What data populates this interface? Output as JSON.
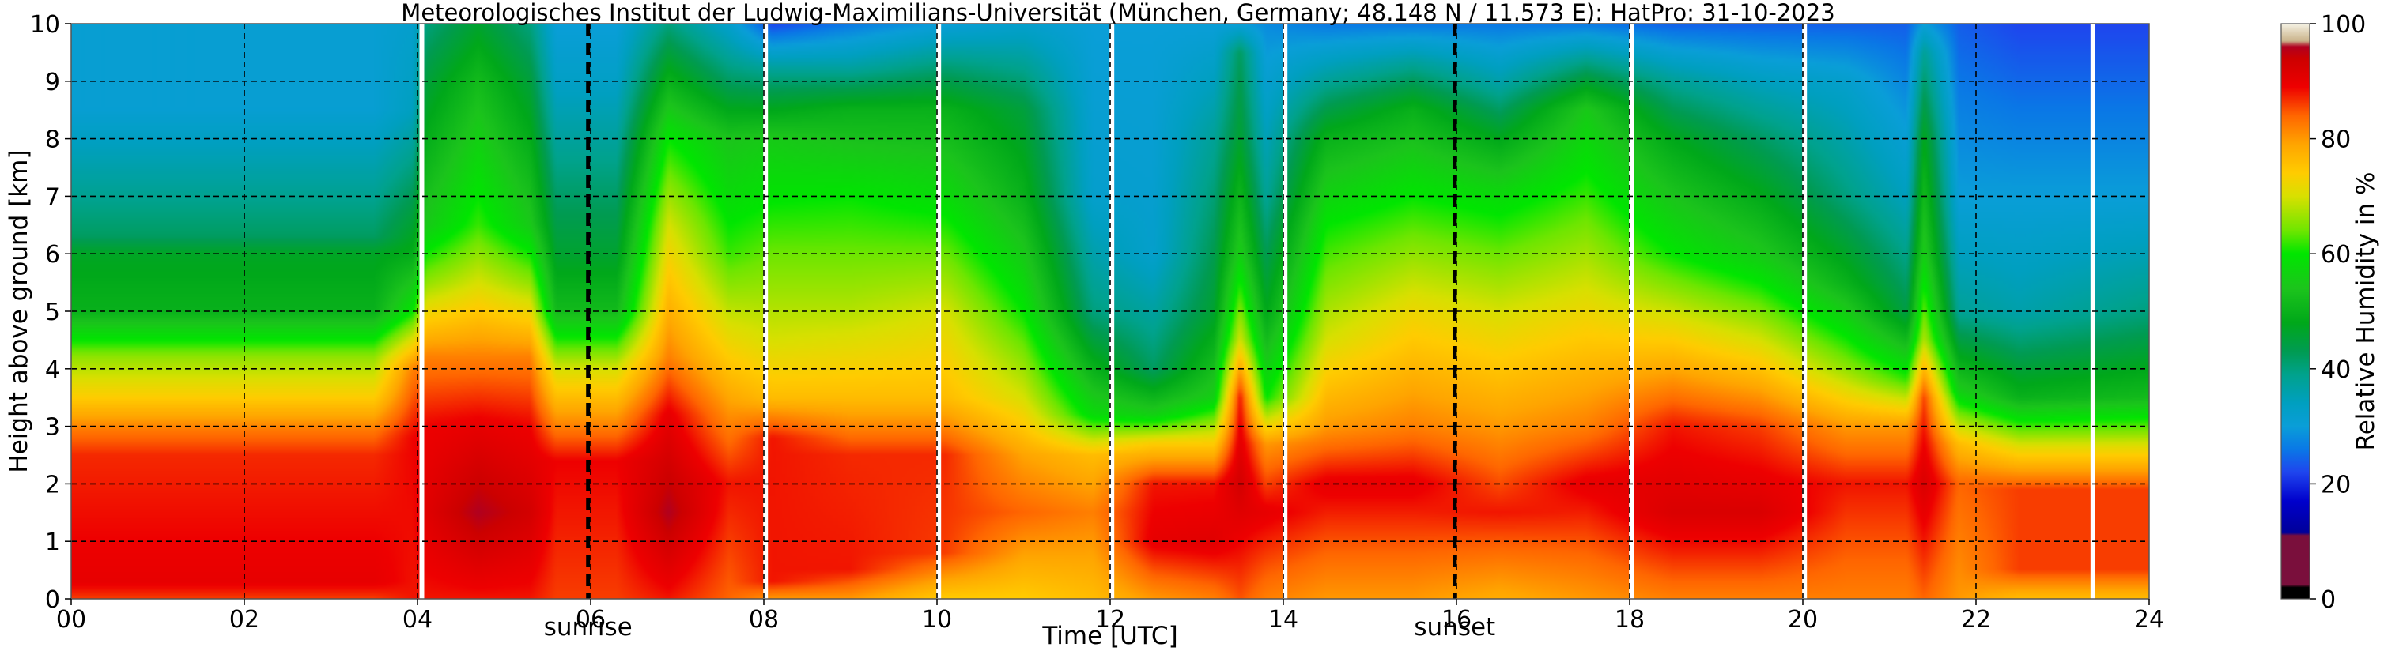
{
  "chart_data": {
    "type": "heatmap",
    "title": "Meteorologisches Institut der Ludwig-Maximilians-Universität (München, Germany; 48.148 N / 11.573 E):    HatPro: 31-10-2023",
    "xlabel": "Time [UTC]",
    "ylabel": "Height above ground [km]",
    "xlim": [
      0,
      24
    ],
    "ylim": [
      0,
      10
    ],
    "x_ticks": [
      0,
      2,
      4,
      6,
      8,
      10,
      12,
      14,
      16,
      18,
      20,
      22,
      24
    ],
    "x_tick_labels": [
      "00",
      "02",
      "04",
      "06",
      "08",
      "10",
      "12",
      "14",
      "16",
      "18",
      "20",
      "22",
      "24"
    ],
    "y_ticks": [
      0,
      1,
      2,
      3,
      4,
      5,
      6,
      7,
      8,
      9,
      10
    ],
    "y_tick_labels": [
      "0",
      "1",
      "2",
      "3",
      "4",
      "5",
      "6",
      "7",
      "8",
      "9",
      "10"
    ],
    "grid": true,
    "events": [
      {
        "time": 5.97,
        "label": "sunrise"
      },
      {
        "time": 15.98,
        "label": "sunset"
      }
    ],
    "data_gaps": [
      4.05,
      8.02,
      10.02,
      12.02,
      14.02,
      18.02,
      20.02,
      23.35
    ],
    "colorbar": {
      "label": "Relative Humidity in %",
      "range": [
        0,
        100
      ],
      "ticks": [
        0,
        20,
        40,
        60,
        80,
        100
      ],
      "tick_labels": [
        "0",
        "20",
        "40",
        "60",
        "80",
        "100"
      ],
      "colors": [
        {
          "v": 0,
          "c": "#000000"
        },
        {
          "v": 2,
          "c": "#000000"
        },
        {
          "v": 2.5,
          "c": "#7a0f3c"
        },
        {
          "v": 11,
          "c": "#7a0f3c"
        },
        {
          "v": 11.5,
          "c": "#000099"
        },
        {
          "v": 17,
          "c": "#0000cc"
        },
        {
          "v": 22,
          "c": "#1f45ee"
        },
        {
          "v": 26,
          "c": "#0a78e6"
        },
        {
          "v": 30,
          "c": "#0a9ed8"
        },
        {
          "v": 34,
          "c": "#009fc0"
        },
        {
          "v": 39,
          "c": "#00a28c"
        },
        {
          "v": 43,
          "c": "#009b52"
        },
        {
          "v": 48,
          "c": "#00a81a"
        },
        {
          "v": 54,
          "c": "#1cc41c"
        },
        {
          "v": 60,
          "c": "#00e600"
        },
        {
          "v": 64,
          "c": "#6ee600"
        },
        {
          "v": 70,
          "c": "#d8e000"
        },
        {
          "v": 74,
          "c": "#ffcc00"
        },
        {
          "v": 79,
          "c": "#ffa500"
        },
        {
          "v": 84,
          "c": "#ff6600"
        },
        {
          "v": 89,
          "c": "#ee0000"
        },
        {
          "v": 94,
          "c": "#cc0000"
        },
        {
          "v": 96,
          "c": "#b00020"
        },
        {
          "v": 97,
          "c": "#c9b28a"
        },
        {
          "v": 100,
          "c": "#f5f2e4"
        }
      ]
    },
    "profiles": [
      {
        "t": 0.0,
        "levels": [
          [
            0,
            86
          ],
          [
            0.3,
            90
          ],
          [
            2.5,
            87
          ],
          [
            2.9,
            83
          ],
          [
            3.5,
            74
          ],
          [
            4.2,
            66
          ],
          [
            5.0,
            50
          ],
          [
            6.0,
            47
          ],
          [
            6.3,
            42
          ],
          [
            8.5,
            31
          ],
          [
            10,
            31
          ]
        ]
      },
      {
        "t": 3.5,
        "levels": [
          [
            0,
            86
          ],
          [
            0.3,
            90
          ],
          [
            2.5,
            87
          ],
          [
            2.9,
            83
          ],
          [
            3.5,
            74
          ],
          [
            4.2,
            66
          ],
          [
            5.0,
            50
          ],
          [
            6.0,
            47
          ],
          [
            6.3,
            42
          ],
          [
            8.5,
            31
          ],
          [
            10,
            31
          ]
        ]
      },
      {
        "t": 3.95,
        "levels": [
          [
            0,
            88
          ],
          [
            2.8,
            89
          ],
          [
            4.0,
            82
          ],
          [
            5.0,
            60
          ],
          [
            6.0,
            49
          ],
          [
            8.5,
            34
          ],
          [
            10,
            32
          ]
        ]
      },
      {
        "t": 4.1,
        "levels": [
          [
            0,
            88
          ],
          [
            1.5,
            91
          ],
          [
            3.0,
            89
          ],
          [
            4.2,
            82
          ],
          [
            5.5,
            66
          ],
          [
            6.5,
            55
          ],
          [
            9.0,
            45
          ],
          [
            10,
            40
          ]
        ]
      },
      {
        "t": 4.7,
        "levels": [
          [
            0,
            88
          ],
          [
            1.5,
            96
          ],
          [
            3.0,
            90
          ],
          [
            4.2,
            82
          ],
          [
            5.5,
            70
          ],
          [
            6.5,
            62
          ],
          [
            9.0,
            52
          ],
          [
            10,
            46
          ]
        ]
      },
      {
        "t": 5.3,
        "levels": [
          [
            0,
            88
          ],
          [
            1.5,
            93
          ],
          [
            3.0,
            89
          ],
          [
            4.2,
            82
          ],
          [
            5.5,
            66
          ],
          [
            6.5,
            55
          ],
          [
            9.0,
            45
          ],
          [
            10,
            40
          ]
        ]
      },
      {
        "t": 5.6,
        "levels": [
          [
            0,
            86
          ],
          [
            2.4,
            89
          ],
          [
            3.0,
            82
          ],
          [
            4.0,
            70
          ],
          [
            5.0,
            52
          ],
          [
            6.0,
            46
          ],
          [
            9.0,
            33
          ],
          [
            10,
            30
          ]
        ]
      },
      {
        "t": 6.3,
        "levels": [
          [
            0,
            86
          ],
          [
            2.4,
            89
          ],
          [
            3.0,
            82
          ],
          [
            4.0,
            70
          ],
          [
            5.0,
            52
          ],
          [
            6.0,
            46
          ],
          [
            9.0,
            33
          ],
          [
            10,
            30
          ]
        ]
      },
      {
        "t": 6.9,
        "levels": [
          [
            0,
            88
          ],
          [
            1.5,
            96
          ],
          [
            3.2,
            90
          ],
          [
            4.2,
            82
          ],
          [
            6.5,
            70
          ],
          [
            8.0,
            60
          ],
          [
            9.0,
            50
          ],
          [
            10,
            40
          ]
        ]
      },
      {
        "t": 7.6,
        "levels": [
          [
            0,
            84
          ],
          [
            2.0,
            88
          ],
          [
            3.0,
            82
          ],
          [
            4.5,
            72
          ],
          [
            6.0,
            62
          ],
          [
            8.0,
            54
          ],
          [
            9.0,
            42
          ],
          [
            10,
            32
          ]
        ]
      },
      {
        "t": 8.1,
        "levels": [
          [
            0,
            80
          ],
          [
            0.3,
            88
          ],
          [
            2.8,
            88
          ],
          [
            3.5,
            76
          ],
          [
            4.5,
            70
          ],
          [
            6.0,
            64
          ],
          [
            8.0,
            55
          ],
          [
            9.2,
            38
          ],
          [
            10,
            22
          ]
        ]
      },
      {
        "t": 9.0,
        "levels": [
          [
            0,
            80
          ],
          [
            0.5,
            88
          ],
          [
            2.5,
            87
          ],
          [
            3.5,
            76
          ],
          [
            5.0,
            68
          ],
          [
            7.0,
            60
          ],
          [
            8.5,
            50
          ],
          [
            9.3,
            36
          ],
          [
            10,
            26
          ]
        ]
      },
      {
        "t": 10.1,
        "levels": [
          [
            0,
            74
          ],
          [
            0.8,
            86
          ],
          [
            2.5,
            87
          ],
          [
            3.5,
            76
          ],
          [
            5.0,
            70
          ],
          [
            7.0,
            58
          ],
          [
            8.5,
            50
          ],
          [
            9.3,
            40
          ],
          [
            10,
            30
          ]
        ]
      },
      {
        "t": 11.0,
        "levels": [
          [
            0,
            74
          ],
          [
            1.5,
            84
          ],
          [
            2.5,
            79
          ],
          [
            3.5,
            70
          ],
          [
            5.0,
            60
          ],
          [
            7.0,
            50
          ],
          [
            8.5,
            45
          ],
          [
            10,
            32
          ]
        ]
      },
      {
        "t": 11.8,
        "levels": [
          [
            0,
            76
          ],
          [
            1.5,
            82
          ],
          [
            2.5,
            76
          ],
          [
            3.2,
            58
          ],
          [
            5.0,
            40
          ],
          [
            7.0,
            32
          ],
          [
            10,
            30
          ]
        ]
      },
      {
        "t": 12.5,
        "levels": [
          [
            0,
            80
          ],
          [
            1.0,
            90
          ],
          [
            2.0,
            88
          ],
          [
            2.7,
            74
          ],
          [
            3.2,
            56
          ],
          [
            4.0,
            42
          ],
          [
            6.0,
            32
          ],
          [
            10,
            30
          ]
        ]
      },
      {
        "t": 13.2,
        "levels": [
          [
            0,
            82
          ],
          [
            1.0,
            91
          ],
          [
            2.0,
            88
          ],
          [
            2.7,
            74
          ],
          [
            3.5,
            56
          ],
          [
            5.0,
            46
          ],
          [
            8.0,
            38
          ],
          [
            10,
            30
          ]
        ]
      },
      {
        "t": 13.5,
        "levels": [
          [
            0,
            85
          ],
          [
            2.0,
            93
          ],
          [
            3.5,
            88
          ],
          [
            4.5,
            70
          ],
          [
            6.0,
            56
          ],
          [
            8.0,
            46
          ],
          [
            9.5,
            42
          ],
          [
            10,
            30
          ]
        ]
      },
      {
        "t": 13.8,
        "levels": [
          [
            0,
            82
          ],
          [
            1.5,
            90
          ],
          [
            2.7,
            80
          ],
          [
            3.5,
            60
          ],
          [
            5.0,
            48
          ],
          [
            7.0,
            38
          ],
          [
            10,
            28
          ]
        ]
      },
      {
        "t": 14.5,
        "levels": [
          [
            0,
            80
          ],
          [
            2.0,
            90
          ],
          [
            3.0,
            80
          ],
          [
            4.5,
            70
          ],
          [
            6.5,
            60
          ],
          [
            8.0,
            50
          ],
          [
            9.0,
            38
          ],
          [
            10,
            26
          ]
        ]
      },
      {
        "t": 15.5,
        "levels": [
          [
            0,
            80
          ],
          [
            2.0,
            90
          ],
          [
            3.0,
            82
          ],
          [
            5.0,
            72
          ],
          [
            7.0,
            60
          ],
          [
            8.5,
            50
          ],
          [
            9.3,
            38
          ],
          [
            10,
            26
          ]
        ]
      },
      {
        "t": 16.5,
        "levels": [
          [
            0,
            78
          ],
          [
            1.5,
            88
          ],
          [
            3.0,
            80
          ],
          [
            5.0,
            70
          ],
          [
            7.0,
            58
          ],
          [
            8.0,
            48
          ],
          [
            9.0,
            36
          ],
          [
            10,
            26
          ]
        ]
      },
      {
        "t": 17.5,
        "levels": [
          [
            0,
            80
          ],
          [
            2.0,
            90
          ],
          [
            3.0,
            82
          ],
          [
            5.0,
            72
          ],
          [
            7.0,
            62
          ],
          [
            8.5,
            55
          ],
          [
            9.3,
            40
          ],
          [
            10,
            26
          ]
        ]
      },
      {
        "t": 18.5,
        "levels": [
          [
            0,
            82
          ],
          [
            1.5,
            92
          ],
          [
            3.0,
            88
          ],
          [
            4.5,
            74
          ],
          [
            6.0,
            60
          ],
          [
            8.0,
            48
          ],
          [
            9.0,
            38
          ],
          [
            10,
            24
          ]
        ]
      },
      {
        "t": 19.5,
        "levels": [
          [
            0,
            82
          ],
          [
            1.5,
            92
          ],
          [
            3.0,
            86
          ],
          [
            4.5,
            70
          ],
          [
            6.0,
            55
          ],
          [
            8.0,
            42
          ],
          [
            9.0,
            34
          ],
          [
            10,
            24
          ]
        ]
      },
      {
        "t": 20.5,
        "levels": [
          [
            0,
            82
          ],
          [
            2.0,
            88
          ],
          [
            3.0,
            80
          ],
          [
            4.0,
            66
          ],
          [
            5.5,
            50
          ],
          [
            7.0,
            40
          ],
          [
            9.0,
            32
          ],
          [
            10,
            24
          ]
        ]
      },
      {
        "t": 21.2,
        "levels": [
          [
            0,
            82
          ],
          [
            2.0,
            88
          ],
          [
            3.0,
            80
          ],
          [
            3.8,
            62
          ],
          [
            5.0,
            44
          ],
          [
            7.0,
            34
          ],
          [
            10,
            24
          ]
        ]
      },
      {
        "t": 21.4,
        "levels": [
          [
            0,
            84
          ],
          [
            2.0,
            92
          ],
          [
            3.5,
            86
          ],
          [
            4.5,
            68
          ],
          [
            6.0,
            56
          ],
          [
            8.0,
            48
          ],
          [
            9.5,
            38
          ],
          [
            10,
            30
          ]
        ]
      },
      {
        "t": 21.8,
        "levels": [
          [
            0,
            80
          ],
          [
            2.0,
            84
          ],
          [
            2.7,
            76
          ],
          [
            3.6,
            56
          ],
          [
            5.0,
            38
          ],
          [
            7.0,
            30
          ],
          [
            10,
            24
          ]
        ]
      },
      {
        "t": 22.5,
        "levels": [
          [
            0,
            76
          ],
          [
            0.5,
            86
          ],
          [
            1.9,
            86
          ],
          [
            2.6,
            72
          ],
          [
            3.5,
            50
          ],
          [
            5.0,
            36
          ],
          [
            7.0,
            30
          ],
          [
            10,
            22
          ]
        ]
      },
      {
        "t": 24.0,
        "levels": [
          [
            0,
            76
          ],
          [
            0.5,
            86
          ],
          [
            1.9,
            86
          ],
          [
            2.6,
            72
          ],
          [
            3.5,
            52
          ],
          [
            5.0,
            40
          ],
          [
            7.0,
            30
          ],
          [
            10,
            22
          ]
        ]
      }
    ]
  }
}
